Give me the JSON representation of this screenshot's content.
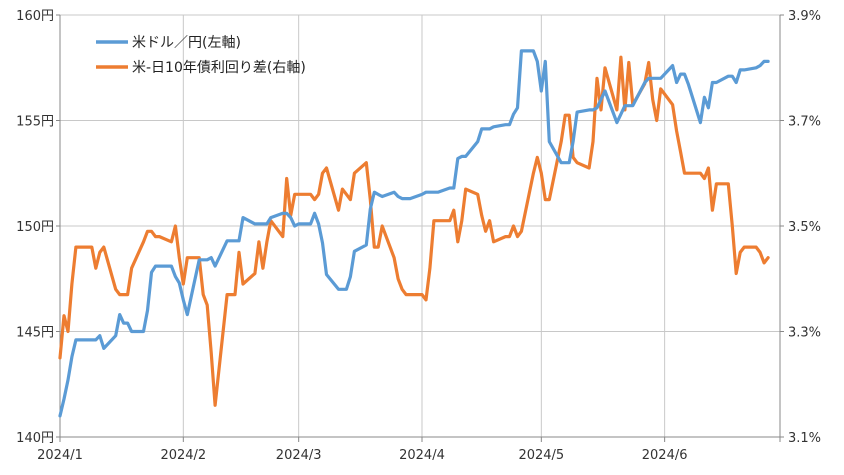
{
  "chart_data": {
    "type": "line",
    "title": "",
    "legend_placement": "top-left",
    "grid": {
      "horizontal": true,
      "vertical": true
    },
    "x_axis": {
      "type": "date",
      "range": [
        "2024-01-01",
        "2024-06-30"
      ],
      "tick_labels": [
        "2024/1",
        "2024/2",
        "2024/3",
        "2024/4",
        "2024/5",
        "2024/6"
      ],
      "tick_dates": [
        "2024-01-01",
        "2024-02-01",
        "2024-03-01",
        "2024-04-01",
        "2024-05-01",
        "2024-06-01"
      ]
    },
    "y_left": {
      "range": [
        140,
        160
      ],
      "ticks": [
        140,
        145,
        150,
        155,
        160
      ],
      "tick_labels": [
        "140円",
        "145円",
        "150円",
        "155円",
        "160円"
      ]
    },
    "y_right": {
      "range": [
        3.1,
        3.9
      ],
      "ticks": [
        3.1,
        3.3,
        3.5,
        3.7,
        3.9
      ],
      "tick_labels": [
        "3.1%",
        "3.3%",
        "3.5%",
        "3.7%",
        "3.9%"
      ]
    },
    "series": [
      {
        "name": "米ドル／円(左軸)",
        "axis": "left",
        "color": "#5b9bd5",
        "points": [
          [
            "2024-01-01",
            141.0
          ],
          [
            "2024-01-02",
            141.8
          ],
          [
            "2024-01-03",
            142.7
          ],
          [
            "2024-01-04",
            143.8
          ],
          [
            "2024-01-05",
            144.6
          ],
          [
            "2024-01-08",
            144.6
          ],
          [
            "2024-01-09",
            144.6
          ],
          [
            "2024-01-10",
            144.6
          ],
          [
            "2024-01-11",
            144.8
          ],
          [
            "2024-01-12",
            144.2
          ],
          [
            "2024-01-15",
            144.8
          ],
          [
            "2024-01-16",
            145.8
          ],
          [
            "2024-01-17",
            145.4
          ],
          [
            "2024-01-18",
            145.4
          ],
          [
            "2024-01-19",
            145.0
          ],
          [
            "2024-01-22",
            145.0
          ],
          [
            "2024-01-23",
            146.0
          ],
          [
            "2024-01-24",
            147.8
          ],
          [
            "2024-01-25",
            148.1
          ],
          [
            "2024-01-26",
            148.1
          ],
          [
            "2024-01-29",
            148.1
          ],
          [
            "2024-01-30",
            147.6
          ],
          [
            "2024-01-31",
            147.3
          ],
          [
            "2024-02-01",
            146.5
          ],
          [
            "2024-02-02",
            145.8
          ],
          [
            "2024-02-05",
            148.4
          ],
          [
            "2024-02-06",
            148.4
          ],
          [
            "2024-02-07",
            148.4
          ],
          [
            "2024-02-08",
            148.5
          ],
          [
            "2024-02-09",
            148.1
          ],
          [
            "2024-02-12",
            149.3
          ],
          [
            "2024-02-13",
            149.3
          ],
          [
            "2024-02-14",
            149.3
          ],
          [
            "2024-02-15",
            149.3
          ],
          [
            "2024-02-16",
            150.4
          ],
          [
            "2024-02-19",
            150.1
          ],
          [
            "2024-02-20",
            150.1
          ],
          [
            "2024-02-21",
            150.1
          ],
          [
            "2024-02-22",
            150.1
          ],
          [
            "2024-02-23",
            150.4
          ],
          [
            "2024-02-26",
            150.6
          ],
          [
            "2024-02-27",
            150.6
          ],
          [
            "2024-02-28",
            150.4
          ],
          [
            "2024-02-29",
            150.0
          ],
          [
            "2024-03-01",
            150.1
          ],
          [
            "2024-03-04",
            150.1
          ],
          [
            "2024-03-05",
            150.6
          ],
          [
            "2024-03-06",
            150.1
          ],
          [
            "2024-03-07",
            149.2
          ],
          [
            "2024-03-08",
            147.7
          ],
          [
            "2024-03-11",
            147.0
          ],
          [
            "2024-03-12",
            147.0
          ],
          [
            "2024-03-13",
            147.0
          ],
          [
            "2024-03-14",
            147.6
          ],
          [
            "2024-03-15",
            148.8
          ],
          [
            "2024-03-18",
            149.1
          ],
          [
            "2024-03-19",
            150.8
          ],
          [
            "2024-03-20",
            151.6
          ],
          [
            "2024-03-21",
            151.5
          ],
          [
            "2024-03-22",
            151.4
          ],
          [
            "2024-03-25",
            151.6
          ],
          [
            "2024-03-26",
            151.4
          ],
          [
            "2024-03-27",
            151.3
          ],
          [
            "2024-03-28",
            151.3
          ],
          [
            "2024-03-29",
            151.3
          ],
          [
            "2024-04-01",
            151.5
          ],
          [
            "2024-04-02",
            151.6
          ],
          [
            "2024-04-03",
            151.6
          ],
          [
            "2024-04-04",
            151.6
          ],
          [
            "2024-04-05",
            151.6
          ],
          [
            "2024-04-08",
            151.8
          ],
          [
            "2024-04-09",
            151.8
          ],
          [
            "2024-04-10",
            153.2
          ],
          [
            "2024-04-11",
            153.3
          ],
          [
            "2024-04-12",
            153.3
          ],
          [
            "2024-04-15",
            154.0
          ],
          [
            "2024-04-16",
            154.6
          ],
          [
            "2024-04-17",
            154.6
          ],
          [
            "2024-04-18",
            154.6
          ],
          [
            "2024-04-19",
            154.7
          ],
          [
            "2024-04-22",
            154.8
          ],
          [
            "2024-04-23",
            154.8
          ],
          [
            "2024-04-24",
            155.3
          ],
          [
            "2024-04-25",
            155.6
          ],
          [
            "2024-04-26",
            158.3
          ],
          [
            "2024-04-29",
            158.3
          ],
          [
            "2024-04-30",
            157.8
          ],
          [
            "2024-05-01",
            156.4
          ],
          [
            "2024-05-02",
            157.8
          ],
          [
            "2024-05-03",
            154.0
          ],
          [
            "2024-05-06",
            153.0
          ],
          [
            "2024-05-07",
            153.0
          ],
          [
            "2024-05-08",
            153.0
          ],
          [
            "2024-05-09",
            154.0
          ],
          [
            "2024-05-10",
            155.4
          ],
          [
            "2024-05-13",
            155.5
          ],
          [
            "2024-05-14",
            155.5
          ],
          [
            "2024-05-15",
            155.6
          ],
          [
            "2024-05-16",
            156.0
          ],
          [
            "2024-05-17",
            156.4
          ],
          [
            "2024-05-20",
            154.9
          ],
          [
            "2024-05-21",
            155.3
          ],
          [
            "2024-05-22",
            155.7
          ],
          [
            "2024-05-23",
            155.7
          ],
          [
            "2024-05-24",
            155.7
          ],
          [
            "2024-05-27",
            156.8
          ],
          [
            "2024-05-28",
            157.0
          ],
          [
            "2024-05-29",
            157.0
          ],
          [
            "2024-05-30",
            157.0
          ],
          [
            "2024-05-31",
            157.0
          ],
          [
            "2024-06-03",
            157.6
          ],
          [
            "2024-06-04",
            156.8
          ],
          [
            "2024-06-05",
            157.2
          ],
          [
            "2024-06-06",
            157.2
          ],
          [
            "2024-06-07",
            156.7
          ],
          [
            "2024-06-10",
            154.9
          ],
          [
            "2024-06-11",
            156.1
          ],
          [
            "2024-06-12",
            155.6
          ],
          [
            "2024-06-13",
            156.8
          ],
          [
            "2024-06-14",
            156.8
          ],
          [
            "2024-06-17",
            157.1
          ],
          [
            "2024-06-18",
            157.1
          ],
          [
            "2024-06-19",
            156.8
          ],
          [
            "2024-06-20",
            157.4
          ],
          [
            "2024-06-21",
            157.4
          ],
          [
            "2024-06-24",
            157.5
          ],
          [
            "2024-06-25",
            157.6
          ],
          [
            "2024-06-26",
            157.8
          ],
          [
            "2024-06-27",
            157.8
          ]
        ]
      },
      {
        "name": "米-日10年債利回り差(右軸)",
        "axis": "right",
        "color": "#ed7d31",
        "points": [
          [
            "2024-01-01",
            3.25
          ],
          [
            "2024-01-02",
            3.33
          ],
          [
            "2024-01-03",
            3.3
          ],
          [
            "2024-01-04",
            3.39
          ],
          [
            "2024-01-05",
            3.46
          ],
          [
            "2024-01-08",
            3.46
          ],
          [
            "2024-01-09",
            3.46
          ],
          [
            "2024-01-10",
            3.42
          ],
          [
            "2024-01-11",
            3.45
          ],
          [
            "2024-01-12",
            3.46
          ],
          [
            "2024-01-15",
            3.38
          ],
          [
            "2024-01-16",
            3.37
          ],
          [
            "2024-01-17",
            3.37
          ],
          [
            "2024-01-18",
            3.37
          ],
          [
            "2024-01-19",
            3.42
          ],
          [
            "2024-01-22",
            3.47
          ],
          [
            "2024-01-23",
            3.49
          ],
          [
            "2024-01-24",
            3.49
          ],
          [
            "2024-01-25",
            3.48
          ],
          [
            "2024-01-26",
            3.48
          ],
          [
            "2024-01-29",
            3.47
          ],
          [
            "2024-01-30",
            3.5
          ],
          [
            "2024-01-31",
            3.44
          ],
          [
            "2024-02-01",
            3.39
          ],
          [
            "2024-02-02",
            3.44
          ],
          [
            "2024-02-05",
            3.44
          ],
          [
            "2024-02-06",
            3.37
          ],
          [
            "2024-02-07",
            3.35
          ],
          [
            "2024-02-08",
            3.26
          ],
          [
            "2024-02-09",
            3.16
          ],
          [
            "2024-02-12",
            3.37
          ],
          [
            "2024-02-13",
            3.37
          ],
          [
            "2024-02-14",
            3.37
          ],
          [
            "2024-02-15",
            3.45
          ],
          [
            "2024-02-16",
            3.39
          ],
          [
            "2024-02-19",
            3.41
          ],
          [
            "2024-02-20",
            3.47
          ],
          [
            "2024-02-21",
            3.42
          ],
          [
            "2024-02-22",
            3.47
          ],
          [
            "2024-02-23",
            3.51
          ],
          [
            "2024-02-26",
            3.48
          ],
          [
            "2024-02-27",
            3.59
          ],
          [
            "2024-02-28",
            3.52
          ],
          [
            "2024-02-29",
            3.56
          ],
          [
            "2024-03-01",
            3.56
          ],
          [
            "2024-03-04",
            3.56
          ],
          [
            "2024-03-05",
            3.55
          ],
          [
            "2024-03-06",
            3.56
          ],
          [
            "2024-03-07",
            3.6
          ],
          [
            "2024-03-08",
            3.61
          ],
          [
            "2024-03-11",
            3.53
          ],
          [
            "2024-03-12",
            3.57
          ],
          [
            "2024-03-13",
            3.56
          ],
          [
            "2024-03-14",
            3.55
          ],
          [
            "2024-03-15",
            3.6
          ],
          [
            "2024-03-18",
            3.62
          ],
          [
            "2024-03-19",
            3.55
          ],
          [
            "2024-03-20",
            3.46
          ],
          [
            "2024-03-21",
            3.46
          ],
          [
            "2024-03-22",
            3.5
          ],
          [
            "2024-03-25",
            3.44
          ],
          [
            "2024-03-26",
            3.4
          ],
          [
            "2024-03-27",
            3.38
          ],
          [
            "2024-03-28",
            3.37
          ],
          [
            "2024-03-29",
            3.37
          ],
          [
            "2024-04-01",
            3.37
          ],
          [
            "2024-04-02",
            3.36
          ],
          [
            "2024-04-03",
            3.42
          ],
          [
            "2024-04-04",
            3.51
          ],
          [
            "2024-04-05",
            3.51
          ],
          [
            "2024-04-08",
            3.51
          ],
          [
            "2024-04-09",
            3.53
          ],
          [
            "2024-04-10",
            3.47
          ],
          [
            "2024-04-11",
            3.51
          ],
          [
            "2024-04-12",
            3.57
          ],
          [
            "2024-04-15",
            3.56
          ],
          [
            "2024-04-16",
            3.52
          ],
          [
            "2024-04-17",
            3.49
          ],
          [
            "2024-04-18",
            3.51
          ],
          [
            "2024-04-19",
            3.47
          ],
          [
            "2024-04-22",
            3.48
          ],
          [
            "2024-04-23",
            3.48
          ],
          [
            "2024-04-24",
            3.5
          ],
          [
            "2024-04-25",
            3.48
          ],
          [
            "2024-04-26",
            3.49
          ],
          [
            "2024-04-29",
            3.6
          ],
          [
            "2024-04-30",
            3.63
          ],
          [
            "2024-05-01",
            3.6
          ],
          [
            "2024-05-02",
            3.55
          ],
          [
            "2024-05-03",
            3.55
          ],
          [
            "2024-05-06",
            3.66
          ],
          [
            "2024-05-07",
            3.71
          ],
          [
            "2024-05-08",
            3.71
          ],
          [
            "2024-05-09",
            3.63
          ],
          [
            "2024-05-10",
            3.62
          ],
          [
            "2024-05-13",
            3.61
          ],
          [
            "2024-05-14",
            3.66
          ],
          [
            "2024-05-15",
            3.78
          ],
          [
            "2024-05-16",
            3.72
          ],
          [
            "2024-05-17",
            3.8
          ],
          [
            "2024-05-20",
            3.72
          ],
          [
            "2024-05-21",
            3.82
          ],
          [
            "2024-05-22",
            3.72
          ],
          [
            "2024-05-23",
            3.81
          ],
          [
            "2024-05-24",
            3.73
          ],
          [
            "2024-05-27",
            3.77
          ],
          [
            "2024-05-28",
            3.81
          ],
          [
            "2024-05-29",
            3.74
          ],
          [
            "2024-05-30",
            3.7
          ],
          [
            "2024-05-31",
            3.76
          ],
          [
            "2024-06-03",
            3.73
          ],
          [
            "2024-06-04",
            3.68
          ],
          [
            "2024-06-05",
            3.64
          ],
          [
            "2024-06-06",
            3.6
          ],
          [
            "2024-06-07",
            3.6
          ],
          [
            "2024-06-10",
            3.6
          ],
          [
            "2024-06-11",
            3.59
          ],
          [
            "2024-06-12",
            3.61
          ],
          [
            "2024-06-13",
            3.53
          ],
          [
            "2024-06-14",
            3.58
          ],
          [
            "2024-06-17",
            3.58
          ],
          [
            "2024-06-18",
            3.5
          ],
          [
            "2024-06-19",
            3.41
          ],
          [
            "2024-06-20",
            3.45
          ],
          [
            "2024-06-21",
            3.46
          ],
          [
            "2024-06-24",
            3.46
          ],
          [
            "2024-06-25",
            3.45
          ],
          [
            "2024-06-26",
            3.43
          ],
          [
            "2024-06-27",
            3.44
          ]
        ]
      }
    ]
  }
}
